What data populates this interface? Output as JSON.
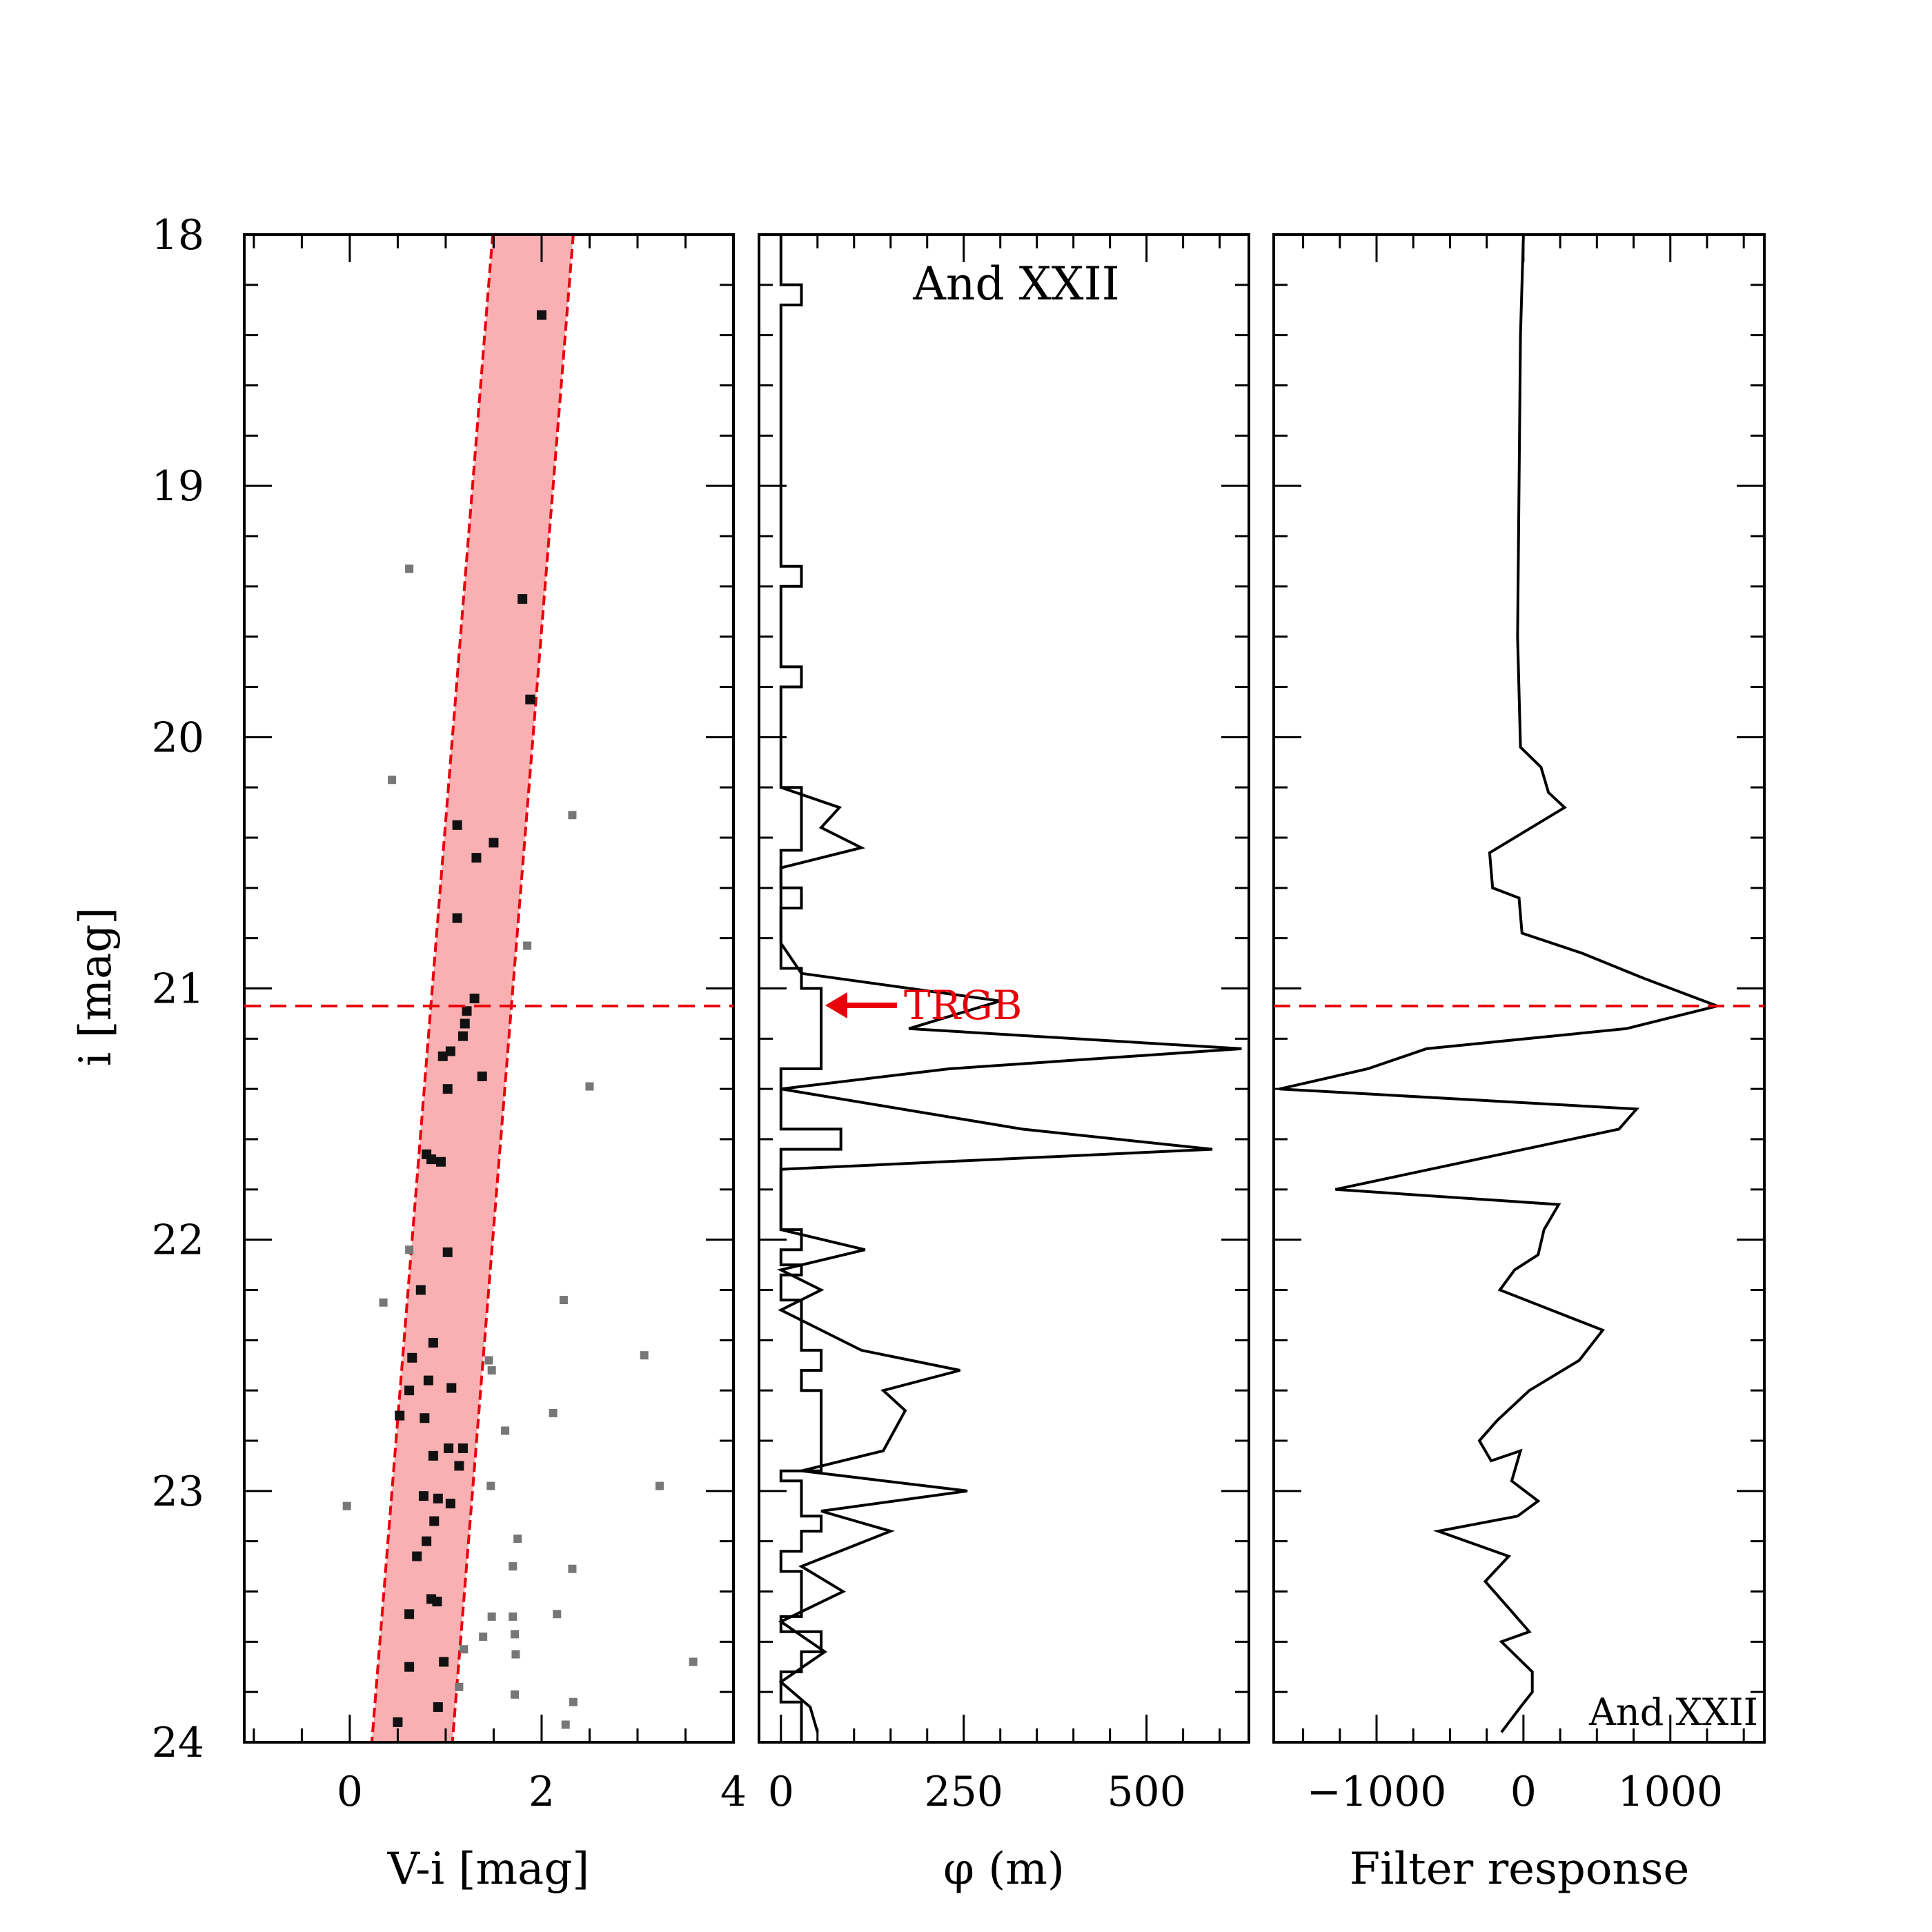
{
  "chart_data": [
    {
      "type": "scatter",
      "xlabel": "V-i [mag]",
      "ylabel": "i [mag]",
      "xlim": [
        -1.1,
        4.0
      ],
      "ylim": [
        24,
        18
      ],
      "xticks": [
        "0",
        "2",
        "4"
      ],
      "yticks": [
        "18",
        "19",
        "20",
        "21",
        "22",
        "23",
        "24"
      ],
      "rgb_band": {
        "color": "#f8b0b3",
        "edge_color": "#e8000b",
        "left_edge": [
          [
            1.49,
            18.0
          ],
          [
            0.23,
            24.0
          ]
        ],
        "right_edge": [
          [
            2.33,
            18.0
          ],
          [
            1.07,
            24.0
          ]
        ]
      },
      "trgb_mag": 21.07,
      "members_color": "#111111",
      "members": [
        [
          2.0,
          18.32
        ],
        [
          1.8,
          19.45
        ],
        [
          1.88,
          19.85
        ],
        [
          1.12,
          20.35
        ],
        [
          1.5,
          20.42
        ],
        [
          1.32,
          20.48
        ],
        [
          1.12,
          20.72
        ],
        [
          1.3,
          21.04
        ],
        [
          1.22,
          21.09
        ],
        [
          1.2,
          21.14
        ],
        [
          1.18,
          21.19
        ],
        [
          1.05,
          21.25
        ],
        [
          0.97,
          21.27
        ],
        [
          1.38,
          21.35
        ],
        [
          1.02,
          21.4
        ],
        [
          0.8,
          21.66
        ],
        [
          0.85,
          21.68
        ],
        [
          0.95,
          21.69
        ],
        [
          1.02,
          22.05
        ],
        [
          0.74,
          22.2
        ],
        [
          0.87,
          22.41
        ],
        [
          0.65,
          22.47
        ],
        [
          0.82,
          22.56
        ],
        [
          0.62,
          22.6
        ],
        [
          1.06,
          22.59
        ],
        [
          0.52,
          22.7
        ],
        [
          0.78,
          22.71
        ],
        [
          1.03,
          22.83
        ],
        [
          1.18,
          22.83
        ],
        [
          0.87,
          22.86
        ],
        [
          1.14,
          22.9
        ],
        [
          0.77,
          23.02
        ],
        [
          0.92,
          23.03
        ],
        [
          1.05,
          23.05
        ],
        [
          0.88,
          23.12
        ],
        [
          0.8,
          23.2
        ],
        [
          0.7,
          23.26
        ],
        [
          0.85,
          23.43
        ],
        [
          0.91,
          23.44
        ],
        [
          0.62,
          23.49
        ],
        [
          0.98,
          23.68
        ],
        [
          0.62,
          23.7
        ],
        [
          0.92,
          23.86
        ],
        [
          0.5,
          23.92
        ]
      ],
      "field_color": "#777777",
      "field": [
        [
          0.62,
          19.33
        ],
        [
          0.44,
          20.17
        ],
        [
          2.32,
          20.31
        ],
        [
          1.85,
          20.83
        ],
        [
          2.5,
          21.39
        ],
        [
          0.62,
          22.04
        ],
        [
          0.35,
          22.25
        ],
        [
          2.23,
          22.24
        ],
        [
          1.45,
          22.48
        ],
        [
          1.48,
          22.52
        ],
        [
          3.07,
          22.46
        ],
        [
          2.12,
          22.69
        ],
        [
          1.62,
          22.76
        ],
        [
          3.23,
          22.98
        ],
        [
          1.47,
          22.98
        ],
        [
          -0.03,
          23.06
        ],
        [
          1.75,
          23.19
        ],
        [
          2.32,
          23.31
        ],
        [
          1.7,
          23.3
        ],
        [
          1.48,
          23.5
        ],
        [
          1.7,
          23.5
        ],
        [
          2.16,
          23.49
        ],
        [
          1.72,
          23.57
        ],
        [
          1.39,
          23.58
        ],
        [
          1.73,
          23.65
        ],
        [
          1.19,
          23.63
        ],
        [
          3.58,
          23.68
        ],
        [
          1.14,
          23.78
        ],
        [
          1.72,
          23.81
        ],
        [
          2.33,
          23.84
        ],
        [
          2.25,
          23.93
        ]
      ]
    },
    {
      "type": "line",
      "title": "And XXII",
      "xlabel": "φ (m)",
      "xlim": [
        -30,
        640
      ],
      "ylim": [
        24,
        18
      ],
      "xticks": [
        "0",
        "250",
        "500"
      ],
      "annotation": {
        "text": "TRGB",
        "color": "#e8000b",
        "mag": 21.07
      },
      "step_profile": [
        [
          0,
          18.0
        ],
        [
          0,
          18.2
        ],
        [
          28,
          18.2
        ],
        [
          28,
          18.28
        ],
        [
          0,
          18.28
        ],
        [
          0,
          19.32
        ],
        [
          28,
          19.32
        ],
        [
          28,
          19.4
        ],
        [
          0,
          19.4
        ],
        [
          0,
          19.72
        ],
        [
          28,
          19.72
        ],
        [
          28,
          19.8
        ],
        [
          0,
          19.8
        ],
        [
          0,
          20.2
        ],
        [
          28,
          20.2
        ],
        [
          28,
          20.45
        ],
        [
          0,
          20.45
        ],
        [
          0,
          20.6
        ],
        [
          28,
          20.6
        ],
        [
          28,
          20.68
        ],
        [
          0,
          20.68
        ],
        [
          0,
          20.92
        ],
        [
          28,
          20.92
        ],
        [
          28,
          21.0
        ],
        [
          55,
          21.0
        ],
        [
          55,
          21.32
        ],
        [
          0,
          21.32
        ],
        [
          0,
          21.56
        ],
        [
          82,
          21.56
        ],
        [
          82,
          21.64
        ],
        [
          0,
          21.64
        ],
        [
          0,
          21.96
        ],
        [
          28,
          21.96
        ],
        [
          28,
          22.04
        ],
        [
          0,
          22.04
        ],
        [
          0,
          22.1
        ],
        [
          28,
          22.1
        ],
        [
          28,
          22.14
        ],
        [
          0,
          22.14
        ],
        [
          0,
          22.24
        ],
        [
          28,
          22.24
        ],
        [
          28,
          22.44
        ],
        [
          55,
          22.44
        ],
        [
          55,
          22.52
        ],
        [
          28,
          22.52
        ],
        [
          28,
          22.6
        ],
        [
          55,
          22.6
        ],
        [
          55,
          22.92
        ],
        [
          0,
          22.92
        ],
        [
          0,
          22.96
        ],
        [
          28,
          22.96
        ],
        [
          28,
          23.1
        ],
        [
          55,
          23.1
        ],
        [
          55,
          23.16
        ],
        [
          28,
          23.16
        ],
        [
          28,
          23.24
        ],
        [
          0,
          23.24
        ],
        [
          0,
          23.32
        ],
        [
          28,
          23.32
        ],
        [
          28,
          23.5
        ],
        [
          0,
          23.5
        ],
        [
          0,
          23.56
        ],
        [
          55,
          23.56
        ],
        [
          55,
          23.64
        ],
        [
          28,
          23.64
        ],
        [
          28,
          23.72
        ],
        [
          0,
          23.72
        ],
        [
          0,
          23.84
        ],
        [
          28,
          23.84
        ],
        [
          28,
          24.0
        ]
      ],
      "line_profile": [
        [
          0,
          20.2
        ],
        [
          80,
          20.28
        ],
        [
          55,
          20.36
        ],
        [
          110,
          20.44
        ],
        [
          0,
          20.52
        ],
        [
          0,
          20.64
        ],
        [
          0,
          20.82
        ],
        [
          28,
          20.94
        ],
        [
          300,
          21.05
        ],
        [
          175,
          21.16
        ],
        [
          630,
          21.24
        ],
        [
          230,
          21.32
        ],
        [
          0,
          21.4
        ],
        [
          330,
          21.56
        ],
        [
          590,
          21.64
        ],
        [
          0,
          21.72
        ],
        [
          0,
          21.96
        ],
        [
          115,
          22.04
        ],
        [
          0,
          22.12
        ],
        [
          55,
          22.2
        ],
        [
          0,
          22.28
        ],
        [
          110,
          22.44
        ],
        [
          245,
          22.52
        ],
        [
          140,
          22.6
        ],
        [
          170,
          22.68
        ],
        [
          140,
          22.84
        ],
        [
          28,
          22.92
        ],
        [
          255,
          23.0
        ],
        [
          55,
          23.08
        ],
        [
          150,
          23.16
        ],
        [
          28,
          23.3
        ],
        [
          85,
          23.4
        ],
        [
          0,
          23.52
        ],
        [
          60,
          23.64
        ],
        [
          0,
          23.76
        ],
        [
          40,
          23.86
        ],
        [
          50,
          23.96
        ]
      ]
    },
    {
      "type": "line",
      "xlabel": "Filter response",
      "xlim": [
        -1700,
        1640
      ],
      "ylim": [
        24,
        18
      ],
      "xticks": [
        "−1000",
        "0",
        "1000"
      ],
      "trgb_mag": 21.07,
      "corner_label": "And XXII",
      "response": [
        [
          0,
          18.0
        ],
        [
          -20,
          18.4
        ],
        [
          -30,
          19.0
        ],
        [
          -40,
          19.6
        ],
        [
          -20,
          20.04
        ],
        [
          120,
          20.12
        ],
        [
          170,
          20.22
        ],
        [
          280,
          20.28
        ],
        [
          -230,
          20.46
        ],
        [
          -210,
          20.6
        ],
        [
          -30,
          20.64
        ],
        [
          -10,
          20.78
        ],
        [
          400,
          20.86
        ],
        [
          820,
          20.96
        ],
        [
          1320,
          21.07
        ],
        [
          700,
          21.16
        ],
        [
          -660,
          21.24
        ],
        [
          -1060,
          21.32
        ],
        [
          -1660,
          21.4
        ],
        [
          770,
          21.48
        ],
        [
          650,
          21.56
        ],
        [
          -1280,
          21.8
        ],
        [
          240,
          21.86
        ],
        [
          140,
          21.96
        ],
        [
          100,
          22.06
        ],
        [
          -60,
          22.12
        ],
        [
          -160,
          22.2
        ],
        [
          540,
          22.36
        ],
        [
          380,
          22.48
        ],
        [
          40,
          22.6
        ],
        [
          -180,
          22.72
        ],
        [
          -300,
          22.8
        ],
        [
          -220,
          22.88
        ],
        [
          -20,
          22.84
        ],
        [
          -80,
          22.96
        ],
        [
          100,
          23.04
        ],
        [
          -40,
          23.1
        ],
        [
          -580,
          23.16
        ],
        [
          -100,
          23.26
        ],
        [
          -260,
          23.36
        ],
        [
          -80,
          23.48
        ],
        [
          40,
          23.56
        ],
        [
          -150,
          23.6
        ],
        [
          60,
          23.72
        ],
        [
          60,
          23.8
        ],
        [
          -20,
          23.86
        ],
        [
          -150,
          23.96
        ]
      ]
    }
  ]
}
